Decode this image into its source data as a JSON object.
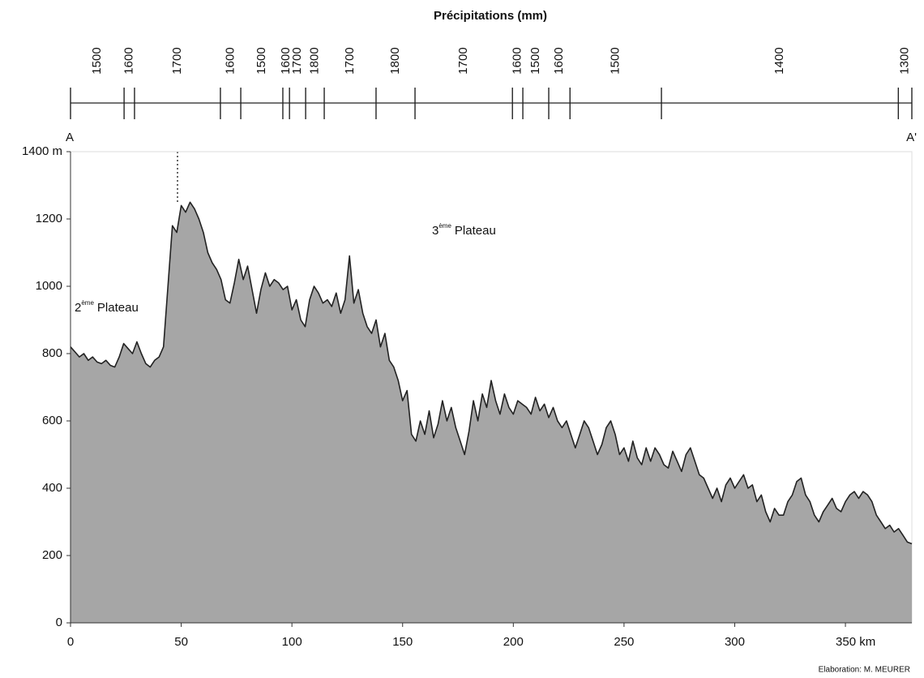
{
  "chart_data": [
    {
      "type": "strip",
      "title": "Précipitations (mm)",
      "bins": [
        0,
        24.2,
        28.9,
        67.7,
        76.9,
        95.9,
        98.9,
        106.2,
        114.6,
        138,
        155.6,
        199.6,
        204.3,
        216,
        225.6,
        266.9,
        373.9,
        380
      ],
      "values": [
        1500,
        1600,
        1700,
        1600,
        1500,
        1600,
        1700,
        1800,
        1700,
        1800,
        1700,
        1600,
        1500,
        1600,
        1500,
        1400,
        1300
      ],
      "start_label": "A",
      "end_label": "A'",
      "xlim": [
        0,
        380
      ]
    },
    {
      "type": "area",
      "color": "#a6a6a6",
      "line_color": "#222222",
      "xlim": [
        0,
        380
      ],
      "ylim": [
        0,
        1400
      ],
      "xticks": [
        0,
        50,
        100,
        150,
        200,
        250,
        300,
        {
          "value": 350,
          "label": "350 km"
        }
      ],
      "yticks": [
        0,
        200,
        400,
        600,
        800,
        1000,
        1200,
        {
          "value": 1400,
          "label": "1400 m"
        }
      ],
      "annotations": [
        {
          "text": "2",
          "sup": "ème",
          "rest": "Plateau"
        },
        {
          "text": "3",
          "sup": "ème",
          "rest": "Plateau"
        }
      ],
      "x": [
        0,
        2,
        4,
        6,
        8,
        10,
        12,
        14,
        16,
        18,
        20,
        22,
        24,
        26,
        28,
        30,
        32,
        34,
        36,
        38,
        40,
        42,
        44,
        46,
        48,
        50,
        52,
        54,
        56,
        58,
        60,
        62,
        64,
        66,
        68,
        70,
        72,
        74,
        76,
        78,
        80,
        82,
        84,
        86,
        88,
        90,
        92,
        94,
        96,
        98,
        100,
        102,
        104,
        106,
        108,
        110,
        112,
        114,
        116,
        118,
        120,
        122,
        124,
        126,
        128,
        130,
        132,
        134,
        136,
        138,
        140,
        142,
        144,
        146,
        148,
        150,
        152,
        154,
        156,
        158,
        160,
        162,
        164,
        166,
        168,
        170,
        172,
        174,
        176,
        178,
        180,
        182,
        184,
        186,
        188,
        190,
        192,
        194,
        196,
        198,
        200,
        202,
        204,
        206,
        208,
        210,
        212,
        214,
        216,
        218,
        220,
        222,
        224,
        226,
        228,
        230,
        232,
        234,
        236,
        238,
        240,
        242,
        244,
        246,
        248,
        250,
        252,
        254,
        256,
        258,
        260,
        262,
        264,
        266,
        268,
        270,
        272,
        274,
        276,
        278,
        280,
        282,
        284,
        286,
        288,
        290,
        292,
        294,
        296,
        298,
        300,
        302,
        304,
        306,
        308,
        310,
        312,
        314,
        316,
        318,
        320,
        322,
        324,
        326,
        328,
        330,
        332,
        334,
        336,
        338,
        340,
        342,
        344,
        346,
        348,
        350,
        352,
        354,
        356,
        358,
        360,
        362,
        364,
        366,
        368,
        370,
        372,
        374,
        376,
        378,
        380
      ],
      "values": [
        820,
        805,
        790,
        800,
        780,
        790,
        775,
        770,
        780,
        765,
        760,
        790,
        830,
        815,
        800,
        835,
        800,
        770,
        760,
        780,
        790,
        820,
        1000,
        1180,
        1160,
        1240,
        1220,
        1250,
        1230,
        1200,
        1160,
        1100,
        1070,
        1050,
        1020,
        960,
        950,
        1010,
        1080,
        1020,
        1060,
        990,
        920,
        990,
        1040,
        1000,
        1020,
        1010,
        990,
        1000,
        930,
        960,
        900,
        880,
        960,
        1000,
        980,
        950,
        960,
        940,
        980,
        920,
        960,
        1090,
        950,
        990,
        920,
        880,
        860,
        900,
        820,
        860,
        780,
        760,
        720,
        660,
        690,
        560,
        540,
        600,
        560,
        630,
        550,
        590,
        660,
        600,
        640,
        580,
        540,
        500,
        570,
        660,
        600,
        680,
        640,
        720,
        660,
        620,
        680,
        640,
        620,
        660,
        650,
        640,
        620,
        670,
        630,
        650,
        610,
        640,
        600,
        580,
        600,
        560,
        520,
        560,
        600,
        580,
        540,
        500,
        530,
        580,
        600,
        560,
        500,
        520,
        480,
        540,
        490,
        470,
        520,
        480,
        520,
        500,
        470,
        460,
        510,
        480,
        450,
        500,
        520,
        480,
        440,
        430,
        400,
        370,
        400,
        360,
        410,
        430,
        400,
        420,
        440,
        400,
        410,
        360,
        380,
        330,
        300,
        340,
        320,
        320,
        360,
        380,
        420,
        430,
        380,
        360,
        320,
        300,
        330,
        350,
        370,
        340,
        330,
        360,
        380,
        390,
        370,
        390,
        380,
        360,
        320,
        300,
        280,
        290,
        270,
        280,
        260,
        240,
        235
      ]
    }
  ],
  "credit": "Elaboration: M. MEURER"
}
